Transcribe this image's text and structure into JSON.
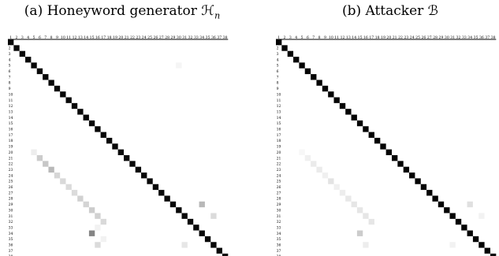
{
  "chart_data": [
    {
      "type": "heatmap",
      "title": "(a) Honeyword generator ℋ",
      "title_subscript": "n",
      "n": 38,
      "tick_labels": [
        "1",
        "2",
        "3",
        "4",
        "5",
        "6",
        "7",
        "8",
        "9",
        "10",
        "11",
        "12",
        "13",
        "14",
        "15",
        "16",
        "17",
        "18",
        "19",
        "20",
        "21",
        "22",
        "23",
        "24",
        "25",
        "26",
        "27",
        "28",
        "29",
        "30",
        "31",
        "32",
        "33",
        "34",
        "35",
        "36",
        "37",
        "38"
      ],
      "grid": false,
      "diagonal_value": 0.97,
      "cells": [
        {
          "row": 20,
          "col": 5,
          "value": 0.07
        },
        {
          "row": 21,
          "col": 6,
          "value": 0.2
        },
        {
          "row": 22,
          "col": 7,
          "value": 0.22
        },
        {
          "row": 23,
          "col": 8,
          "value": 0.28
        },
        {
          "row": 24,
          "col": 9,
          "value": 0.16
        },
        {
          "row": 25,
          "col": 10,
          "value": 0.15
        },
        {
          "row": 26,
          "col": 11,
          "value": 0.14
        },
        {
          "row": 27,
          "col": 12,
          "value": 0.14
        },
        {
          "row": 28,
          "col": 13,
          "value": 0.18
        },
        {
          "row": 29,
          "col": 14,
          "value": 0.17
        },
        {
          "row": 30,
          "col": 15,
          "value": 0.2
        },
        {
          "row": 31,
          "col": 16,
          "value": 0.18
        },
        {
          "row": 32,
          "col": 17,
          "value": 0.15
        },
        {
          "row": 34,
          "col": 15,
          "value": 0.48
        },
        {
          "row": 36,
          "col": 16,
          "value": 0.14
        },
        {
          "row": 29,
          "col": 34,
          "value": 0.28
        },
        {
          "row": 31,
          "col": 36,
          "value": 0.14
        },
        {
          "row": 36,
          "col": 31,
          "value": 0.1
        },
        {
          "row": 5,
          "col": 30,
          "value": 0.04
        },
        {
          "row": 33,
          "col": 16,
          "value": 0.05
        },
        {
          "row": 35,
          "col": 17,
          "value": 0.05
        }
      ]
    },
    {
      "type": "heatmap",
      "title": "(b) Attacker ℬ",
      "n": 38,
      "tick_labels": [
        "1",
        "2",
        "3",
        "4",
        "5",
        "6",
        "7",
        "8",
        "9",
        "10",
        "11",
        "12",
        "13",
        "14",
        "15",
        "16",
        "17",
        "18",
        "19",
        "20",
        "21",
        "22",
        "23",
        "24",
        "25",
        "26",
        "27",
        "28",
        "29",
        "30",
        "31",
        "32",
        "33",
        "34",
        "35",
        "36",
        "37",
        "38"
      ],
      "grid": false,
      "diagonal_value": 0.99,
      "cells": [
        {
          "row": 20,
          "col": 5,
          "value": 0.03
        },
        {
          "row": 21,
          "col": 6,
          "value": 0.06
        },
        {
          "row": 22,
          "col": 7,
          "value": 0.08
        },
        {
          "row": 23,
          "col": 8,
          "value": 0.08
        },
        {
          "row": 24,
          "col": 9,
          "value": 0.06
        },
        {
          "row": 25,
          "col": 10,
          "value": 0.11
        },
        {
          "row": 26,
          "col": 11,
          "value": 0.06
        },
        {
          "row": 27,
          "col": 12,
          "value": 0.07
        },
        {
          "row": 28,
          "col": 13,
          "value": 0.09
        },
        {
          "row": 29,
          "col": 14,
          "value": 0.1
        },
        {
          "row": 30,
          "col": 15,
          "value": 0.1
        },
        {
          "row": 31,
          "col": 16,
          "value": 0.1
        },
        {
          "row": 32,
          "col": 17,
          "value": 0.1
        },
        {
          "row": 34,
          "col": 15,
          "value": 0.2
        },
        {
          "row": 36,
          "col": 16,
          "value": 0.07
        },
        {
          "row": 29,
          "col": 34,
          "value": 0.12
        },
        {
          "row": 31,
          "col": 36,
          "value": 0.05
        },
        {
          "row": 36,
          "col": 31,
          "value": 0.05
        }
      ]
    }
  ]
}
